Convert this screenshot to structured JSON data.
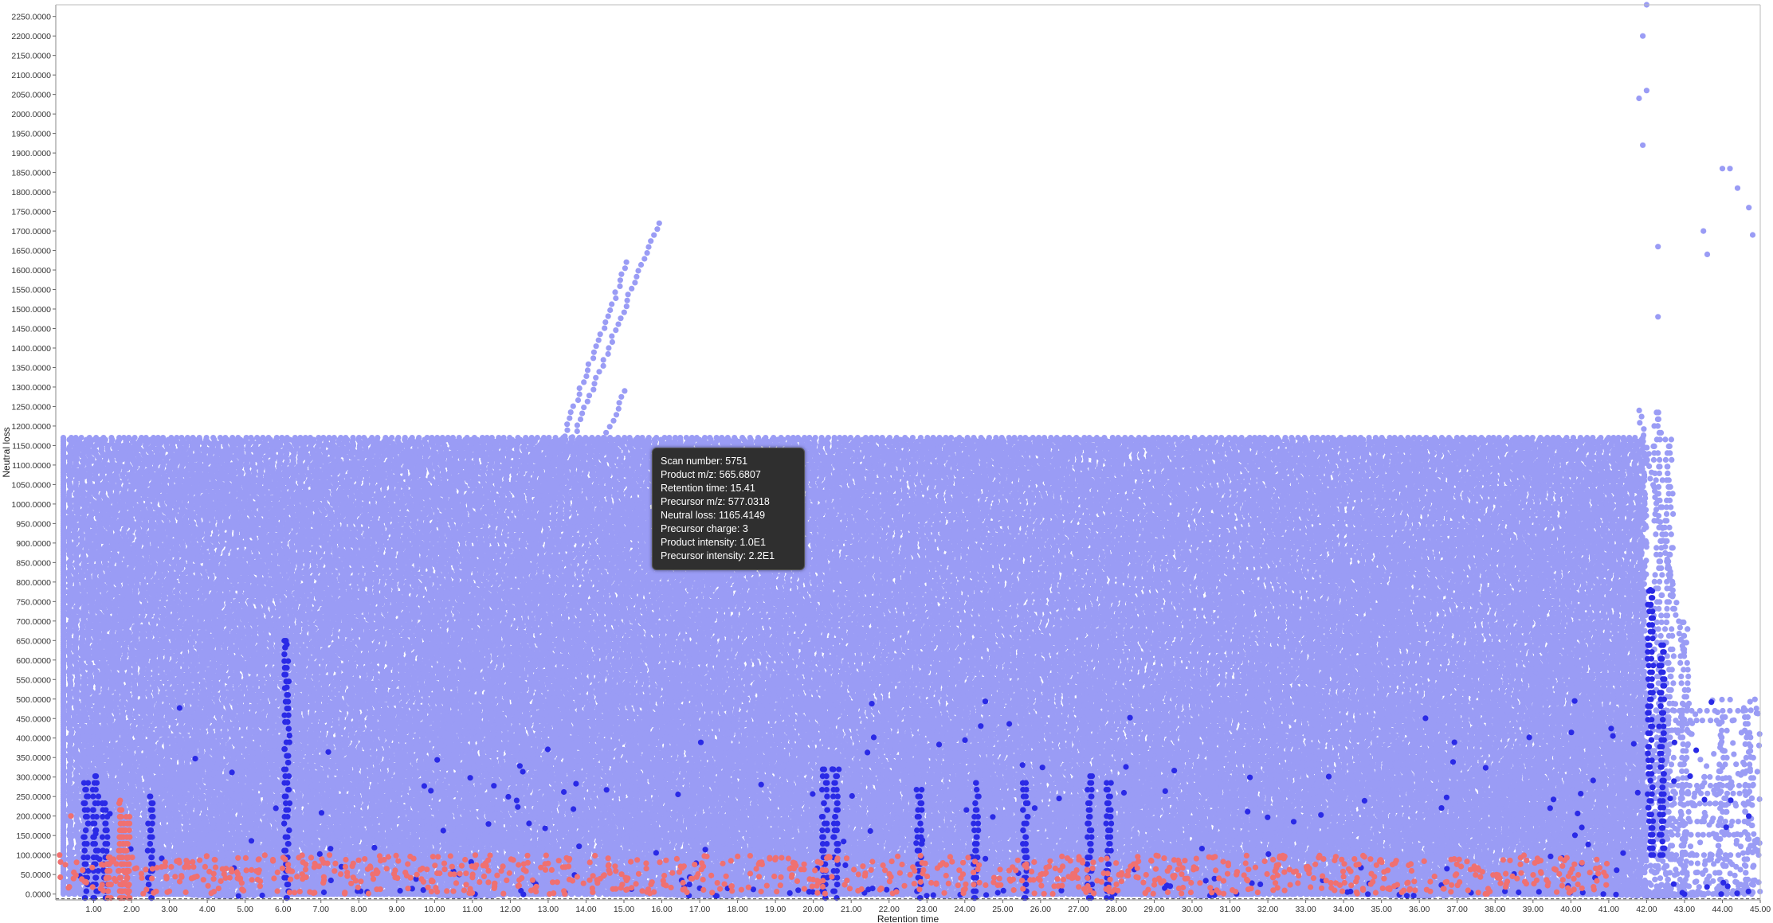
{
  "chart_data": {
    "type": "scatter",
    "xlabel": "Retention time",
    "ylabel": "Neutral loss",
    "xlim": [
      0,
      45
    ],
    "ylim": [
      -15,
      2280
    ],
    "x_ticks": [
      "1.00",
      "2.00",
      "3.00",
      "4.00",
      "5.00",
      "6.00",
      "7.00",
      "8.00",
      "9.00",
      "10.00",
      "11.00",
      "12.00",
      "13.00",
      "14.00",
      "15.00",
      "16.00",
      "17.00",
      "18.00",
      "19.00",
      "20.00",
      "21.00",
      "22.00",
      "23.00",
      "24.00",
      "25.00",
      "26.00",
      "27.00",
      "28.00",
      "29.00",
      "30.00",
      "31.00",
      "32.00",
      "33.00",
      "34.00",
      "35.00",
      "36.00",
      "37.00",
      "38.00",
      "39.00",
      "40.00",
      "41.00",
      "42.00",
      "43.00",
      "44.00",
      "45.00"
    ],
    "y_ticks": [
      "0.0000",
      "50.0000",
      "100.0000",
      "150.0000",
      "200.0000",
      "250.0000",
      "300.0000",
      "350.0000",
      "400.0000",
      "450.0000",
      "500.0000",
      "550.0000",
      "600.0000",
      "650.0000",
      "700.0000",
      "750.0000",
      "800.0000",
      "850.0000",
      "900.0000",
      "950.0000",
      "1000.0000",
      "1050.0000",
      "1100.0000",
      "1150.0000",
      "1200.0000",
      "1250.0000",
      "1300.0000",
      "1350.0000",
      "1400.0000",
      "1450.0000",
      "1500.0000",
      "1550.0000",
      "1600.0000",
      "1650.0000",
      "1700.0000",
      "1750.0000",
      "1800.0000",
      "1850.0000",
      "1900.0000",
      "1950.0000",
      "2000.0000",
      "2050.0000",
      "2100.0000",
      "2150.0000",
      "2200.0000",
      "2250.0000"
    ],
    "colors": {
      "light_blue": "#9a9cf5",
      "dark_blue": "#2a2ae6",
      "red": "#f07070",
      "baseline": "#444444"
    },
    "series": [
      {
        "color": "light_blue",
        "lines": [
          [
            0.2,
            42,
            10,
            0,
            235
          ],
          [
            0.5,
            42.5,
            12,
            0,
            2
          ],
          [
            0.9,
            44.9,
            24,
            0,
            1
          ],
          [
            1.5,
            44.5,
            18,
            100,
            1
          ],
          [
            2,
            44.8,
            26,
            152,
            1
          ],
          [
            2.5,
            44.6,
            30,
            186,
            1
          ],
          [
            11,
            44.8,
            40,
            232,
            1
          ],
          [
            27.8,
            44.8,
            22,
            278,
            1
          ],
          [
            33,
            44.8,
            18,
            258,
            1
          ],
          [
            34,
            44,
            14,
            445,
            1
          ],
          [
            35,
            44.5,
            14,
            470,
            1
          ],
          [
            36,
            42,
            12,
            360,
            1
          ],
          [
            37,
            43,
            10,
            420,
            1
          ]
        ],
        "columns": [
          [
            0.8,
            0,
            420,
            8
          ],
          [
            1.2,
            0,
            430,
            8
          ],
          [
            1.6,
            20,
            280,
            8
          ],
          [
            2.1,
            0,
            260,
            8
          ],
          [
            2.7,
            0,
            260,
            8
          ],
          [
            3.2,
            0,
            300,
            8
          ],
          [
            4.2,
            50,
            400,
            8
          ],
          [
            5.1,
            50,
            380,
            8
          ],
          [
            5.6,
            50,
            370,
            8
          ],
          [
            6.2,
            50,
            420,
            8
          ],
          [
            6.8,
            50,
            360,
            8
          ],
          [
            7.5,
            50,
            420,
            8
          ],
          [
            8.4,
            50,
            380,
            8
          ],
          [
            9.1,
            50,
            420,
            8
          ],
          [
            9.6,
            80,
            600,
            8
          ],
          [
            10.4,
            80,
            650,
            8
          ],
          [
            10.9,
            80,
            720,
            8
          ],
          [
            11.6,
            80,
            760,
            8
          ],
          [
            12.2,
            80,
            780,
            8
          ],
          [
            13,
            80,
            720,
            8
          ],
          [
            13.8,
            80,
            430,
            8
          ],
          [
            14.5,
            80,
            420,
            8
          ],
          [
            15.2,
            50,
            380,
            8
          ],
          [
            16.2,
            50,
            440,
            8
          ],
          [
            16.8,
            50,
            600,
            8
          ],
          [
            17.8,
            50,
            460,
            8
          ],
          [
            19.2,
            50,
            400,
            8
          ],
          [
            20.5,
            0,
            620,
            8
          ],
          [
            21.7,
            50,
            480,
            8
          ],
          [
            22.8,
            50,
            440,
            8
          ],
          [
            23.8,
            50,
            500,
            8
          ],
          [
            24.6,
            50,
            600,
            8
          ],
          [
            25.9,
            50,
            460,
            8
          ],
          [
            27.2,
            50,
            570,
            8
          ],
          [
            29,
            20,
            520,
            8
          ],
          [
            30.6,
            20,
            420,
            8
          ],
          [
            31.6,
            20,
            560,
            8
          ],
          [
            32.2,
            20,
            760,
            8
          ],
          [
            33.2,
            20,
            800,
            8
          ],
          [
            34.6,
            20,
            700,
            8
          ],
          [
            35.3,
            20,
            780,
            8
          ],
          [
            36.3,
            20,
            520,
            8
          ],
          [
            39.2,
            20,
            1180,
            8
          ],
          [
            40.1,
            20,
            620,
            8
          ],
          [
            40.8,
            20,
            900,
            8
          ],
          [
            41.3,
            20,
            1150,
            8
          ],
          [
            42.3,
            20,
            1250,
            8
          ],
          [
            42.6,
            20,
            1180,
            8
          ],
          [
            43,
            20,
            700,
            8
          ],
          [
            44,
            20,
            460,
            8
          ],
          [
            44.7,
            20,
            480,
            8
          ]
        ],
        "diagonals": [
          [
            12,
            760,
            15.9,
            1720
          ],
          [
            12.4,
            560,
            16.5,
            1150
          ],
          [
            11.3,
            620,
            15.1,
            1620
          ],
          [
            11.8,
            480,
            15,
            1290
          ],
          [
            12.8,
            450,
            14.6,
            720
          ],
          [
            13.1,
            500,
            15.3,
            980
          ],
          [
            41.8,
            1240,
            43,
            620
          ]
        ],
        "points": [
          [
            4.5,
            920
          ],
          [
            4.7,
            1000
          ],
          [
            4.9,
            1000
          ],
          [
            5.1,
            920
          ],
          [
            5.3,
            960
          ],
          [
            6,
            1000
          ],
          [
            6,
            920
          ],
          [
            0.3,
            200
          ],
          [
            0.6,
            235
          ],
          [
            42,
            2280
          ],
          [
            41.9,
            2200
          ],
          [
            42,
            2060
          ],
          [
            41.8,
            2040
          ],
          [
            41.9,
            1920
          ],
          [
            42.3,
            1660
          ],
          [
            42.3,
            1480
          ],
          [
            43.5,
            1700
          ],
          [
            43.6,
            1640
          ],
          [
            44,
            1860
          ],
          [
            44.2,
            1860
          ],
          [
            44.4,
            1810
          ],
          [
            44.7,
            1760
          ],
          [
            44.8,
            1690
          ]
        ],
        "seed": 11,
        "count": 5200
      },
      {
        "color": "dark_blue",
        "columns": [
          [
            0.8,
            -10,
            290,
            5
          ],
          [
            1.05,
            -10,
            310,
            5
          ],
          [
            1.3,
            -10,
            240,
            5
          ],
          [
            2.5,
            -10,
            260,
            5
          ],
          [
            6.1,
            -10,
            650,
            5
          ],
          [
            20.3,
            -10,
            330,
            5
          ],
          [
            20.6,
            -10,
            330,
            5
          ],
          [
            22.8,
            -10,
            270,
            5
          ],
          [
            24.3,
            -10,
            300,
            5
          ],
          [
            25.6,
            -10,
            300,
            5
          ],
          [
            27.3,
            -10,
            310,
            5
          ],
          [
            27.8,
            -10,
            300,
            5
          ],
          [
            42.1,
            100,
            790,
            5
          ],
          [
            42.4,
            100,
            640,
            5
          ]
        ],
        "points": [
          [
            6.1,
            640
          ],
          [
            6.1,
            580
          ],
          [
            6.1,
            530
          ],
          [
            20.5,
            320
          ],
          [
            42.1,
            780
          ],
          [
            42.1,
            740
          ]
        ],
        "seed": 23,
        "count": 220
      },
      {
        "color": "red",
        "band": [
          0,
          41,
          0,
          100
        ],
        "columns": [
          [
            1.4,
            -10,
            110,
            4
          ],
          [
            1.7,
            -10,
            240,
            4
          ],
          [
            1.75,
            -10,
            220,
            4
          ],
          [
            1.9,
            -10,
            200,
            4
          ]
        ],
        "points": [
          [
            0.4,
            200
          ],
          [
            1.7,
            240
          ],
          [
            0.1,
            100
          ]
        ],
        "seed": 37,
        "count": 900
      }
    ]
  },
  "tooltip": {
    "scan_number": "Scan number: 5751",
    "product_mz": "Product m/z: 565.6807",
    "retention_time": "Retention time: 15.41",
    "precursor_mz": "Precursor m/z: 577.0318",
    "neutral_loss": "Neutral loss: 1165.4149",
    "precursor_charge": "Precursor charge: 3",
    "product_intensity": "Product intensity: 1.0E1",
    "precursor_intensity": "Precursor intensity: 2.2E1"
  }
}
